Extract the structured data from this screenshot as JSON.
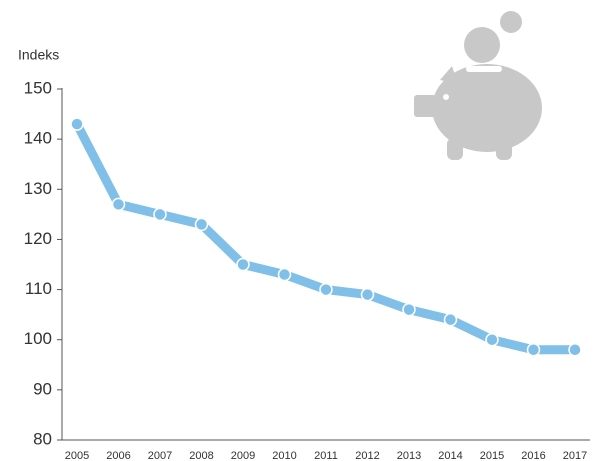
{
  "chart_data": {
    "type": "line",
    "y_label": "Indeks",
    "categories": [
      "2005",
      "2006",
      "2007",
      "2008",
      "2009",
      "2010",
      "2011",
      "2012",
      "2013",
      "2014",
      "2015",
      "2016",
      "2017"
    ],
    "values": [
      143,
      127,
      125,
      123,
      115,
      113,
      110,
      109,
      106,
      104,
      100,
      98,
      98
    ],
    "color": "#7fbfe8",
    "ylim": [
      80,
      150
    ],
    "yticks": [
      80,
      90,
      100,
      110,
      120,
      130,
      140,
      150
    ],
    "grid": false
  }
}
